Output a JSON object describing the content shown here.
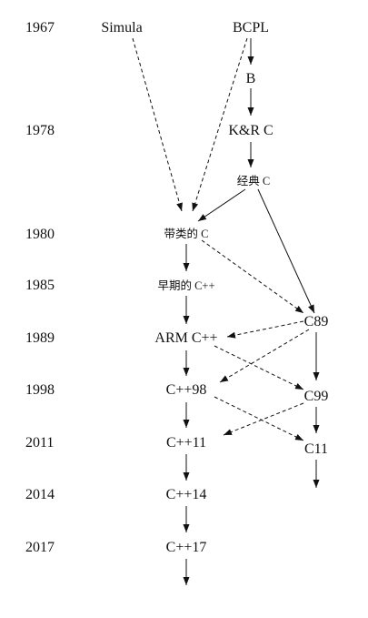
{
  "years": [
    "1967",
    "1978",
    "1980",
    "1985",
    "1989",
    "1998",
    "2011",
    "2014",
    "2017"
  ],
  "nodes": {
    "simula": "Simula",
    "bcpl": "BCPL",
    "b": "B",
    "kr_c": "K&R C",
    "classic_c": "经典 C",
    "c_with_classes": "带类的 C",
    "early_cpp": "早期的 C++",
    "c89": "C89",
    "arm_cpp": "ARM C++",
    "cpp98": "C++98",
    "c99": "C99",
    "cpp11": "C++11",
    "c11": "C11",
    "cpp14": "C++14",
    "cpp17": "C++17"
  },
  "edges": [
    {
      "from": "simula",
      "to": "c_with_classes",
      "style": "dashed"
    },
    {
      "from": "bcpl",
      "to": "c_with_classes",
      "style": "dashed"
    },
    {
      "from": "bcpl",
      "to": "b",
      "style": "solid"
    },
    {
      "from": "b",
      "to": "kr_c",
      "style": "solid"
    },
    {
      "from": "kr_c",
      "to": "classic_c",
      "style": "solid"
    },
    {
      "from": "classic_c",
      "to": "c_with_classes",
      "style": "solid"
    },
    {
      "from": "classic_c",
      "to": "c89",
      "style": "solid"
    },
    {
      "from": "c_with_classes",
      "to": "early_cpp",
      "style": "solid"
    },
    {
      "from": "c_with_classes",
      "to": "c89",
      "style": "dashed"
    },
    {
      "from": "early_cpp",
      "to": "arm_cpp",
      "style": "solid"
    },
    {
      "from": "c89",
      "to": "arm_cpp",
      "style": "dashed"
    },
    {
      "from": "c89",
      "to": "cpp98",
      "style": "dashed"
    },
    {
      "from": "c89",
      "to": "c99",
      "style": "solid"
    },
    {
      "from": "arm_cpp",
      "to": "cpp98",
      "style": "solid"
    },
    {
      "from": "arm_cpp",
      "to": "c99",
      "style": "dashed"
    },
    {
      "from": "cpp98",
      "to": "cpp11",
      "style": "solid"
    },
    {
      "from": "cpp98",
      "to": "c11",
      "style": "dashed"
    },
    {
      "from": "c99",
      "to": "cpp11",
      "style": "dashed"
    },
    {
      "from": "c99",
      "to": "c11",
      "style": "solid"
    },
    {
      "from": "cpp11",
      "to": "cpp14",
      "style": "solid"
    },
    {
      "from": "cpp14",
      "to": "cpp17",
      "style": "solid"
    }
  ],
  "continuations": [
    "c11",
    "cpp17"
  ]
}
